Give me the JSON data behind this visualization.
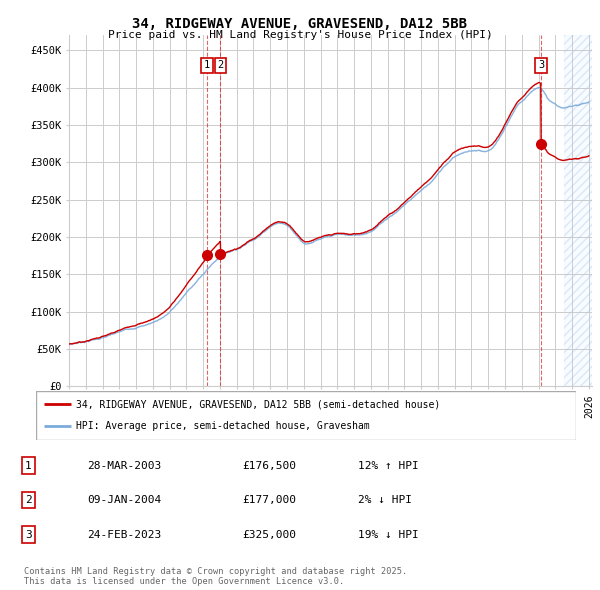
{
  "title": "34, RIDGEWAY AVENUE, GRAVESEND, DA12 5BB",
  "subtitle": "Price paid vs. HM Land Registry's House Price Index (HPI)",
  "ylim": [
    0,
    470000
  ],
  "yticks": [
    0,
    50000,
    100000,
    150000,
    200000,
    250000,
    300000,
    350000,
    400000,
    450000
  ],
  "ytick_labels": [
    "£0",
    "£50K",
    "£100K",
    "£150K",
    "£200K",
    "£250K",
    "£300K",
    "£350K",
    "£400K",
    "£450K"
  ],
  "xlim_start": 1995.0,
  "xlim_end": 2026.2,
  "purchases": [
    {
      "date_num": 2003.24,
      "price": 176500,
      "label": "1"
    },
    {
      "date_num": 2004.03,
      "price": 177000,
      "label": "2"
    },
    {
      "date_num": 2023.15,
      "price": 325000,
      "label": "3"
    }
  ],
  "hpi_anchors_x": [
    1995.0,
    1995.5,
    1996.0,
    1996.5,
    1997.0,
    1997.5,
    1998.0,
    1998.5,
    1999.0,
    1999.5,
    2000.0,
    2000.5,
    2001.0,
    2001.5,
    2002.0,
    2002.5,
    2003.0,
    2003.5,
    2004.0,
    2004.5,
    2005.0,
    2005.5,
    2006.0,
    2006.5,
    2007.0,
    2007.3,
    2007.6,
    2008.0,
    2008.5,
    2009.0,
    2009.5,
    2010.0,
    2010.5,
    2011.0,
    2011.5,
    2012.0,
    2012.5,
    2013.0,
    2013.5,
    2014.0,
    2014.5,
    2015.0,
    2015.5,
    2016.0,
    2016.5,
    2017.0,
    2017.5,
    2018.0,
    2018.5,
    2019.0,
    2019.5,
    2020.0,
    2020.3,
    2020.6,
    2021.0,
    2021.3,
    2021.6,
    2022.0,
    2022.3,
    2022.6,
    2022.9,
    2023.0,
    2023.5,
    2024.0,
    2024.5,
    2025.0,
    2025.5,
    2026.0
  ],
  "hpi_anchors_y": [
    57000,
    58500,
    61000,
    63500,
    66000,
    69000,
    72000,
    75500,
    79000,
    82000,
    86000,
    92000,
    100000,
    112000,
    125000,
    138000,
    150000,
    163000,
    174000,
    181000,
    186000,
    192000,
    200000,
    208000,
    218000,
    222000,
    223000,
    220000,
    210000,
    198000,
    200000,
    203000,
    205000,
    207000,
    206000,
    205000,
    207000,
    212000,
    220000,
    230000,
    238000,
    248000,
    258000,
    268000,
    278000,
    290000,
    302000,
    313000,
    318000,
    320000,
    319000,
    317000,
    322000,
    330000,
    345000,
    358000,
    370000,
    380000,
    388000,
    395000,
    400000,
    402000,
    388000,
    378000,
    372000,
    375000,
    378000,
    381000
  ],
  "legend_line1": "34, RIDGEWAY AVENUE, GRAVESEND, DA12 5BB (semi-detached house)",
  "legend_line2": "HPI: Average price, semi-detached house, Gravesham",
  "table": [
    {
      "num": "1",
      "date": "28-MAR-2003",
      "price": "£176,500",
      "hpi": "12% ↑ HPI"
    },
    {
      "num": "2",
      "date": "09-JAN-2004",
      "price": "£177,000",
      "hpi": "2% ↓ HPI"
    },
    {
      "num": "3",
      "date": "24-FEB-2023",
      "price": "£325,000",
      "hpi": "19% ↓ HPI"
    }
  ],
  "footnote1": "Contains HM Land Registry data © Crown copyright and database right 2025.",
  "footnote2": "This data is licensed under the Open Government Licence v3.0.",
  "red_color": "#cc0000",
  "blue_color": "#7aabdb",
  "grid_color": "#cccccc",
  "bg_color": "#ffffff",
  "future_fill_color": "#ddeeff",
  "vline_color": "#cc0000",
  "box_color": "#cc0000",
  "future_start": 2024.5
}
